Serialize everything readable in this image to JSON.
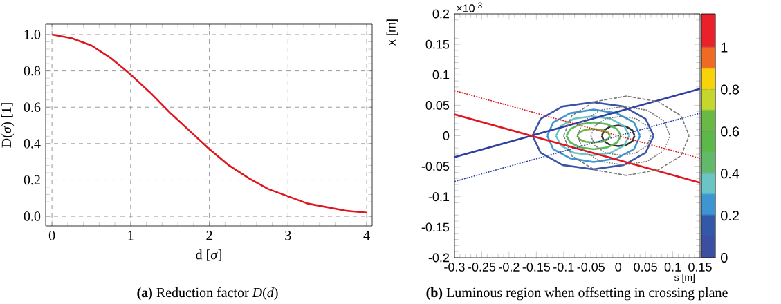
{
  "chart_data": [
    {
      "type": "line",
      "title": "**(a)** Reduction factor *D*(*d*)",
      "xlabel": "d [*σ*]",
      "ylabel": "D(*σ*) [1]",
      "color": "#e0161e",
      "grid": true,
      "x": [
        0,
        0.25,
        0.5,
        0.75,
        1,
        1.25,
        1.5,
        1.75,
        2,
        2.25,
        2.5,
        2.75,
        3,
        3.25,
        3.5,
        3.75,
        4
      ],
      "values": [
        1.0,
        0.98,
        0.94,
        0.87,
        0.78,
        0.68,
        0.57,
        0.47,
        0.37,
        0.28,
        0.21,
        0.15,
        0.11,
        0.07,
        0.05,
        0.03,
        0.02
      ],
      "xlim": [
        -0.08,
        4.07
      ],
      "ylim": [
        -0.053,
        1.057
      ],
      "xticks": [
        0,
        1,
        2,
        3,
        4
      ],
      "yticks": [
        {
          "value": 0,
          "label": "0.0"
        },
        {
          "value": 0.2,
          "label": "0.2"
        },
        {
          "value": 0.4,
          "label": "0.4"
        },
        {
          "value": 0.6,
          "label": "0.6"
        },
        {
          "value": 0.8,
          "label": "0.8"
        },
        {
          "value": 1,
          "label": "1.0"
        }
      ]
    },
    {
      "type": "line",
      "title": "**(b)** Luminous region when offsetting in crossing plane",
      "xlabel": "s [m]",
      "ylabel": "x [m]",
      "annotations": [
        "×10$^{-3}$"
      ],
      "xlim": [
        -0.3,
        0.15
      ],
      "ylim": [
        -0.2,
        0.2
      ],
      "xticks": [
        -0.3,
        -0.25,
        -0.2,
        -0.15,
        -0.1,
        -0.05,
        0,
        0.05,
        0.1,
        0.15
      ],
      "yticks": [
        -0.2,
        -0.15,
        -0.1,
        -0.05,
        0,
        0.05,
        0.1,
        0.15,
        0.2
      ],
      "clim": [
        0,
        1.16
      ],
      "cticks": [
        0,
        0.2,
        0.4,
        0.6,
        0.8,
        1
      ],
      "series": [
        {
          "color": "#777777",
          "line_style": "dashed",
          "x": [
            -0.1,
            -0.085,
            -0.043,
            0.015,
            0.073,
            0.115,
            0.13
          ],
          "values": [
            0,
            0.033,
            0.056,
            0.065,
            0.056,
            0.033,
            0
          ]
        },
        {
          "color": "#777777",
          "line_style": "dashed",
          "x": [
            -0.1,
            -0.085,
            -0.043,
            0.015,
            0.073,
            0.115,
            0.13
          ],
          "values": [
            0,
            -0.033,
            -0.056,
            -0.065,
            -0.056,
            -0.033,
            0
          ]
        },
        {
          "color": "#777777",
          "line_style": "dotted",
          "x": [
            -0.075,
            -0.064,
            -0.033,
            0.01,
            0.053,
            0.084,
            0.095
          ],
          "values": [
            0,
            0.024,
            0.042,
            0.048,
            0.042,
            0.024,
            0
          ]
        },
        {
          "color": "#777777",
          "line_style": "dotted",
          "x": [
            -0.075,
            -0.064,
            -0.033,
            0.01,
            0.053,
            0.084,
            0.095
          ],
          "values": [
            0,
            -0.024,
            -0.042,
            -0.048,
            -0.042,
            -0.024,
            0
          ]
        },
        {
          "color": "#777777",
          "line_style": "dotted",
          "x": [
            -0.05,
            -0.043,
            -0.023,
            0.005,
            0.033,
            0.053,
            0.06
          ],
          "values": [
            0,
            0.016,
            0.028,
            0.032,
            0.028,
            0.016,
            0
          ]
        },
        {
          "color": "#777777",
          "line_style": "dotted",
          "x": [
            -0.05,
            -0.043,
            -0.023,
            0.005,
            0.033,
            0.053,
            0.06
          ],
          "values": [
            0,
            -0.016,
            -0.028,
            -0.032,
            -0.028,
            -0.016,
            0
          ]
        },
        {
          "color": "#333333",
          "line_style": "solid",
          "x": [
            -0.03,
            -0.026,
            -0.015,
            0,
            0.015,
            0.026,
            0.03
          ],
          "values": [
            0,
            0.009,
            0.015,
            0.017,
            0.015,
            0.009,
            0
          ]
        },
        {
          "color": "#333333",
          "line_style": "solid",
          "x": [
            -0.03,
            -0.026,
            -0.015,
            0,
            0.015,
            0.026,
            0.03
          ],
          "values": [
            0,
            -0.009,
            -0.015,
            -0.017,
            -0.015,
            -0.009,
            0
          ]
        },
        {
          "color": "#3a55a8",
          "line_style": "solid",
          "x": [
            -0.157,
            -0.142,
            -0.102,
            -0.046,
            0.01,
            0.05,
            0.065
          ],
          "values": [
            0,
            0.028,
            0.048,
            0.055,
            0.048,
            0.028,
            0
          ]
        },
        {
          "color": "#3a55a8",
          "line_style": "solid",
          "x": [
            -0.157,
            -0.142,
            -0.102,
            -0.046,
            0.01,
            0.05,
            0.065
          ],
          "values": [
            0,
            -0.028,
            -0.048,
            -0.055,
            -0.048,
            -0.028,
            0
          ]
        },
        {
          "color": "#3d96d2",
          "line_style": "solid",
          "x": [
            -0.13,
            -0.119,
            -0.088,
            -0.045,
            -0.003,
            0.029,
            0.04
          ],
          "values": [
            0,
            0.022,
            0.037,
            0.043,
            0.037,
            0.022,
            0
          ]
        },
        {
          "color": "#3d96d2",
          "line_style": "solid",
          "x": [
            -0.13,
            -0.119,
            -0.088,
            -0.045,
            -0.003,
            0.029,
            0.04
          ],
          "values": [
            0,
            -0.022,
            -0.037,
            -0.043,
            -0.037,
            -0.022,
            0
          ]
        },
        {
          "color": "#6cc5c5",
          "line_style": "solid",
          "x": [
            -0.114,
            -0.105,
            -0.081,
            -0.047,
            -0.014,
            0.011,
            0.02
          ],
          "values": [
            0,
            0.016,
            0.028,
            0.032,
            0.028,
            0.016,
            0
          ]
        },
        {
          "color": "#6cc5c5",
          "line_style": "solid",
          "x": [
            -0.114,
            -0.105,
            -0.081,
            -0.047,
            -0.014,
            0.011,
            0.02
          ],
          "values": [
            0,
            -0.016,
            -0.028,
            -0.032,
            -0.028,
            -0.016,
            0
          ]
        },
        {
          "color": "#5cb85c",
          "line_style": "solid",
          "x": [
            -0.095,
            -0.088,
            -0.07,
            -0.045,
            -0.02,
            -0.002,
            0.005
          ],
          "values": [
            0,
            0.011,
            0.019,
            0.022,
            0.019,
            0.011,
            0
          ]
        },
        {
          "color": "#5cb85c",
          "line_style": "solid",
          "x": [
            -0.095,
            -0.088,
            -0.07,
            -0.045,
            -0.02,
            -0.002,
            0.005
          ],
          "values": [
            0,
            -0.011,
            -0.019,
            -0.022,
            -0.019,
            -0.011,
            0
          ]
        },
        {
          "color": "#6ab846",
          "line_style": "solid",
          "x": [
            -0.075,
            -0.071,
            -0.06,
            -0.045,
            -0.03,
            -0.019,
            -0.015
          ],
          "values": [
            0,
            0.006,
            0.01,
            0.011,
            0.01,
            0.006,
            0
          ]
        },
        {
          "color": "#6ab846",
          "line_style": "solid",
          "x": [
            -0.075,
            -0.071,
            -0.06,
            -0.045,
            -0.03,
            -0.019,
            -0.015
          ],
          "values": [
            0,
            -0.006,
            -0.01,
            -0.011,
            -0.01,
            -0.006,
            0
          ]
        },
        {
          "color": "#2e3fa0",
          "line_style": "solid",
          "x": [
            -0.3,
            0.15
          ],
          "values": [
            -0.035,
            0.077
          ]
        },
        {
          "color": "#e0161e",
          "line_style": "solid",
          "x": [
            -0.3,
            0.15
          ],
          "values": [
            0.035,
            -0.077
          ]
        },
        {
          "color": "#e0161e",
          "line_style": "dotted",
          "x": [
            -0.3,
            0.15
          ],
          "values": [
            0.074,
            -0.037
          ]
        },
        {
          "color": "#2e3fa0",
          "line_style": "dotted",
          "x": [
            -0.3,
            0.15
          ],
          "values": [
            -0.075,
            0.037
          ]
        }
      ]
    }
  ]
}
